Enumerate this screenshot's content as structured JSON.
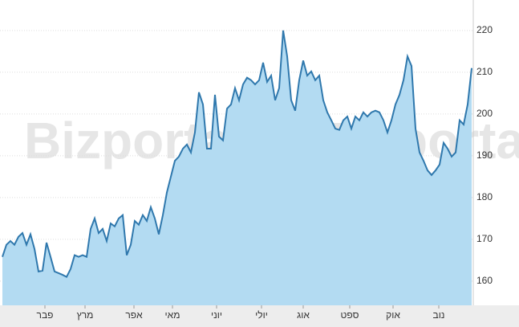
{
  "chart_data": {
    "type": "area",
    "watermark": "Bizportal",
    "x": [
      0,
      1,
      2,
      3,
      4,
      5,
      6,
      7,
      8,
      9,
      10,
      11,
      12,
      13,
      14,
      15,
      16,
      17,
      18,
      19,
      20,
      21,
      22,
      23,
      24,
      25,
      26,
      27,
      28,
      29,
      30,
      31,
      32,
      33,
      34,
      35,
      36,
      37,
      38,
      39,
      40,
      41,
      42,
      43,
      44,
      45,
      46,
      47,
      48,
      49,
      50,
      51,
      52,
      53,
      54,
      55,
      56,
      57,
      58,
      59,
      60,
      61,
      62,
      63,
      64,
      65,
      66,
      67,
      68,
      69,
      70,
      71,
      72,
      73,
      74,
      75,
      76,
      77,
      78,
      79,
      80,
      81,
      82,
      83,
      84,
      85,
      86,
      87,
      88,
      89,
      90,
      91,
      92,
      93,
      94,
      95,
      96,
      97,
      98,
      99,
      100,
      101,
      102,
      103,
      104,
      105,
      106,
      107,
      108,
      109,
      110,
      111,
      112,
      113,
      114,
      115,
      116,
      117
    ],
    "series": [
      {
        "color": "#2f78ad",
        "fill": "#b3dbf2",
        "values": [
          165.8,
          168.7,
          169.6,
          168.7,
          170.6,
          171.5,
          168.7,
          171.2,
          167.7,
          162.3,
          162.5,
          169.2,
          165.8,
          162.3,
          161.9,
          161.5,
          161,
          162.9,
          166.2,
          165.8,
          166.2,
          165.8,
          172.5,
          175,
          171.5,
          172.5,
          169.6,
          173.8,
          173.1,
          175,
          175.8,
          166.2,
          168.7,
          174.4,
          173.5,
          175.8,
          174.4,
          177.7,
          175,
          171.2,
          175.8,
          181.2,
          185,
          188.8,
          189.8,
          191.7,
          192.7,
          190.8,
          195.6,
          205.2,
          202.3,
          191.7,
          191.7,
          204.6,
          194.6,
          193.7,
          201.3,
          202.3,
          206.2,
          203.3,
          207.1,
          208.7,
          208.1,
          207.1,
          208.1,
          212.3,
          207.7,
          209.2,
          203.3,
          206.2,
          220,
          213.8,
          203.3,
          200.8,
          208.1,
          212.8,
          209.2,
          210.2,
          208.1,
          209.2,
          203.3,
          200.4,
          198.5,
          196.5,
          196.2,
          198.5,
          199.4,
          196.5,
          199.4,
          198.5,
          200.4,
          199.4,
          200.4,
          200.8,
          200.4,
          198.5,
          195.6,
          198.5,
          202.3,
          204.6,
          208.1,
          213.8,
          211.5,
          196.5,
          190.8,
          188.8,
          186.5,
          185.4,
          186.5,
          187.9,
          193.1,
          191.7,
          189.8,
          190.8,
          198.5,
          197.5,
          202.3,
          211
        ]
      }
    ],
    "xlim": [
      0,
      117
    ],
    "xticks": [
      {
        "value": 10.6,
        "label": "פבר"
      },
      {
        "value": 20.6,
        "label": "מרץ"
      },
      {
        "value": 32.8,
        "label": "אפר"
      },
      {
        "value": 42.4,
        "label": "מאי"
      },
      {
        "value": 53.4,
        "label": "יוני"
      },
      {
        "value": 64.6,
        "label": "יולי"
      },
      {
        "value": 75,
        "label": "אוג"
      },
      {
        "value": 86.6,
        "label": "ספט"
      },
      {
        "value": 97.4,
        "label": "אוק"
      },
      {
        "value": 108.8,
        "label": "נוב"
      }
    ],
    "ylim": [
      154.2,
      227.3
    ],
    "yticks": [
      160,
      170,
      180,
      190,
      200,
      210,
      220
    ],
    "grid": true
  }
}
